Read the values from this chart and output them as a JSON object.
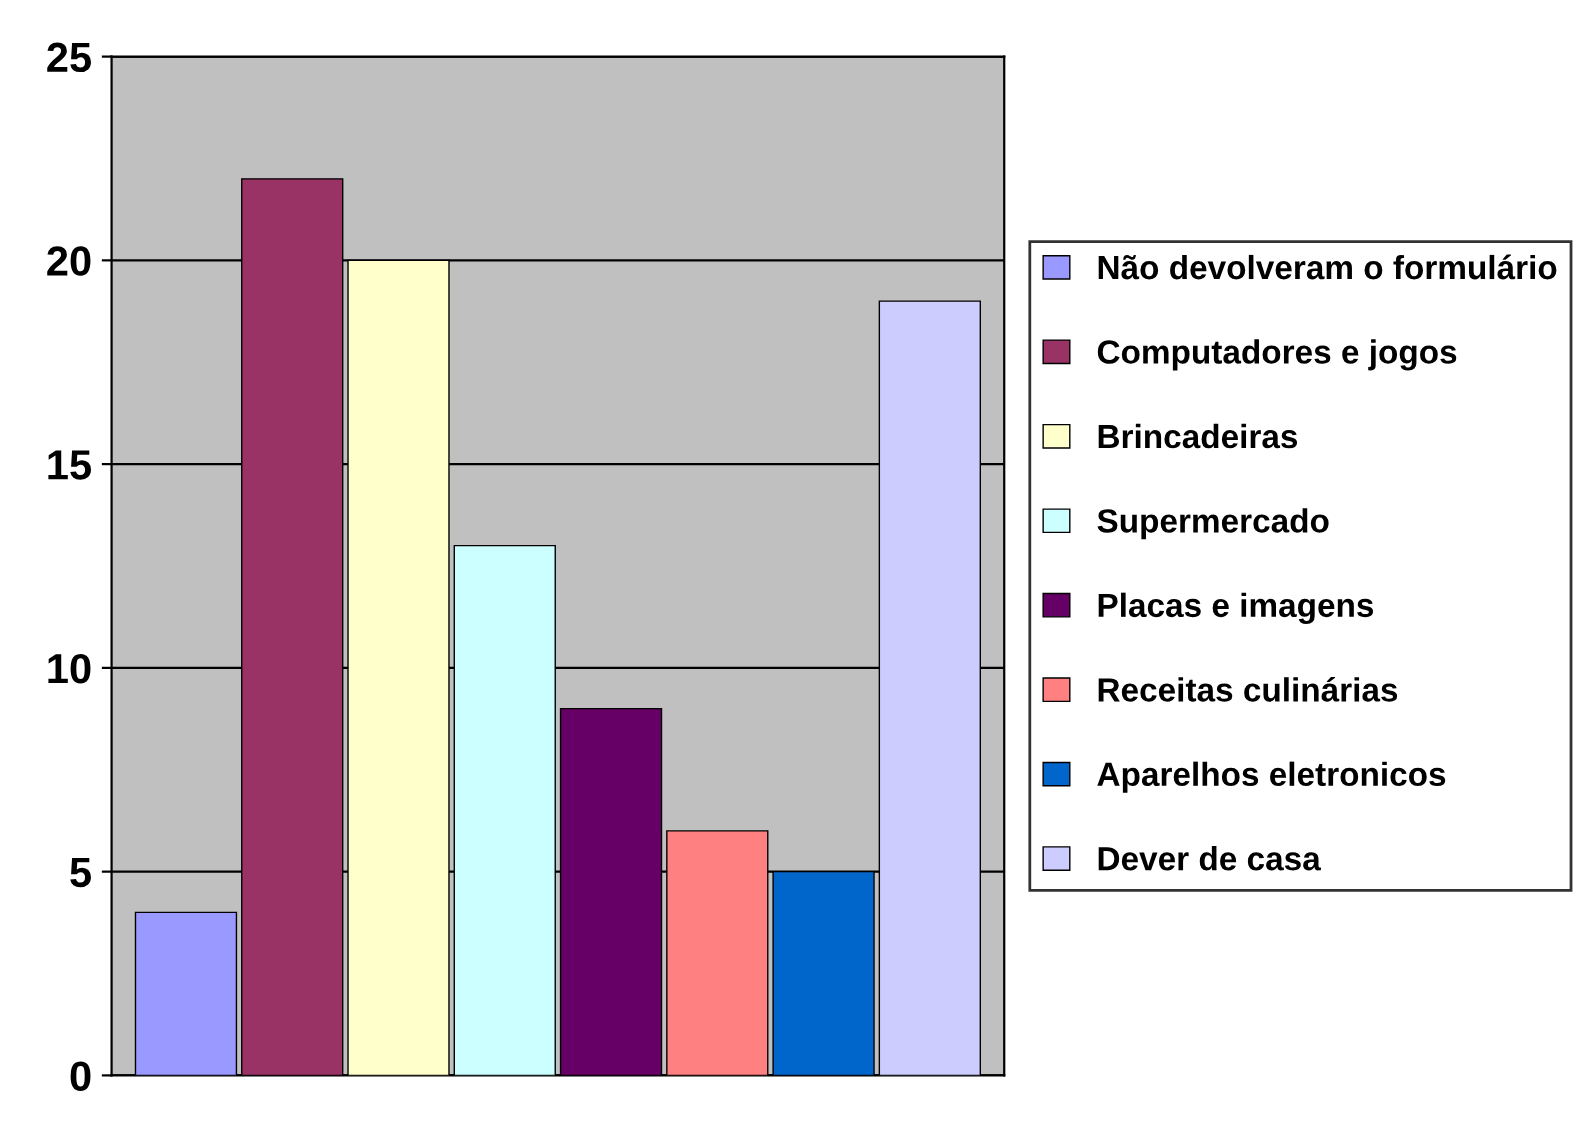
{
  "chart_data": {
    "type": "bar",
    "categories": [
      null,
      null,
      null,
      null,
      null,
      null,
      null,
      null
    ],
    "series": [
      {
        "name": "Não devolveram o formulário",
        "color": "#9999ff",
        "values": [
          4,
          null,
          null,
          null,
          null,
          null,
          null,
          null
        ]
      },
      {
        "name": "Computadores e jogos",
        "color": "#993366",
        "values": [
          null,
          22,
          null,
          null,
          null,
          null,
          null,
          null
        ]
      },
      {
        "name": "Brincadeiras",
        "color": "#ffffcc",
        "values": [
          null,
          null,
          20,
          null,
          null,
          null,
          null,
          null
        ]
      },
      {
        "name": "Supermercado",
        "color": "#ccffff",
        "values": [
          null,
          null,
          null,
          13,
          null,
          null,
          null,
          null
        ]
      },
      {
        "name": "Placas e imagens",
        "color": "#660066",
        "values": [
          null,
          null,
          null,
          null,
          9,
          null,
          null,
          null
        ]
      },
      {
        "name": "Receitas culinárias",
        "color": "#ff8080",
        "values": [
          null,
          null,
          null,
          null,
          null,
          6,
          null,
          null
        ]
      },
      {
        "name": "Aparelhos eletronicos",
        "color": "#0066cc",
        "values": [
          null,
          null,
          null,
          null,
          null,
          null,
          5,
          null
        ]
      },
      {
        "name": "Dever de casa",
        "color": "#ccccff",
        "values": [
          null,
          null,
          null,
          null,
          null,
          null,
          null,
          19
        ]
      }
    ],
    "ylim": [
      0,
      25
    ],
    "yticks": [
      0,
      5,
      10,
      15,
      20,
      25
    ],
    "grid": "y",
    "legend": "right",
    "tick_labels": "y"
  }
}
